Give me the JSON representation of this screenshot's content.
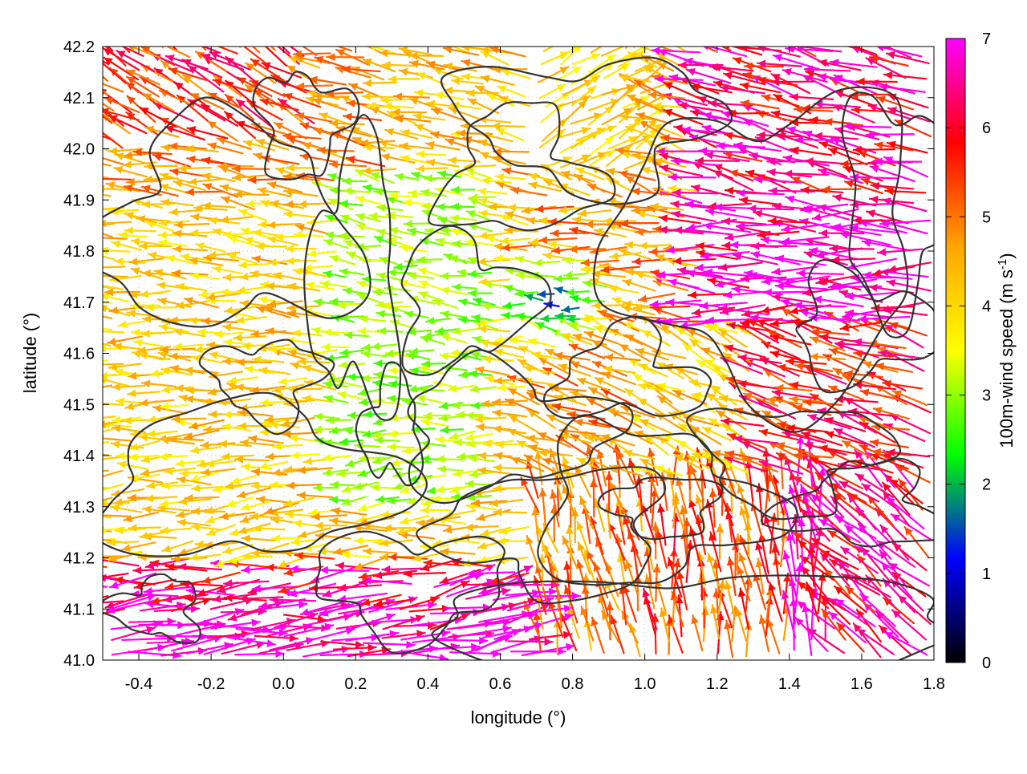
{
  "chart_data": {
    "type": "vector-field",
    "xlabel": "longitude (°)",
    "ylabel": "latitude (°)",
    "xlim": [
      -0.5,
      1.8
    ],
    "ylim": [
      41.0,
      42.2
    ],
    "x_ticks": [
      "-0.4",
      "-0.2",
      "0.0",
      "0.2",
      "0.4",
      "0.6",
      "0.8",
      "1.0",
      "1.2",
      "1.4",
      "1.6",
      "1.8"
    ],
    "y_ticks": [
      "41.0",
      "41.1",
      "41.2",
      "41.3",
      "41.4",
      "41.5",
      "41.6",
      "41.7",
      "41.8",
      "41.9",
      "42.0",
      "42.1",
      "42.2"
    ],
    "grid": true,
    "colorbar": {
      "label": "100m-wind speed (m s",
      "label_sup": "-1",
      "label_end": ")",
      "range": [
        0,
        7
      ],
      "ticks": [
        "0",
        "1",
        "2",
        "3",
        "4",
        "5",
        "6",
        "7"
      ],
      "colors": [
        "#000000",
        "#0000ff",
        "#00ff00",
        "#ffff00",
        "#ffa500",
        "#ff0000",
        "#ff00ff"
      ]
    },
    "contour_color": "#333333",
    "field_description": "100m wind vectors colored by speed; strong easterly flow from the east and west margins, weaker winds in the central basin, terrain contours overlaid"
  }
}
